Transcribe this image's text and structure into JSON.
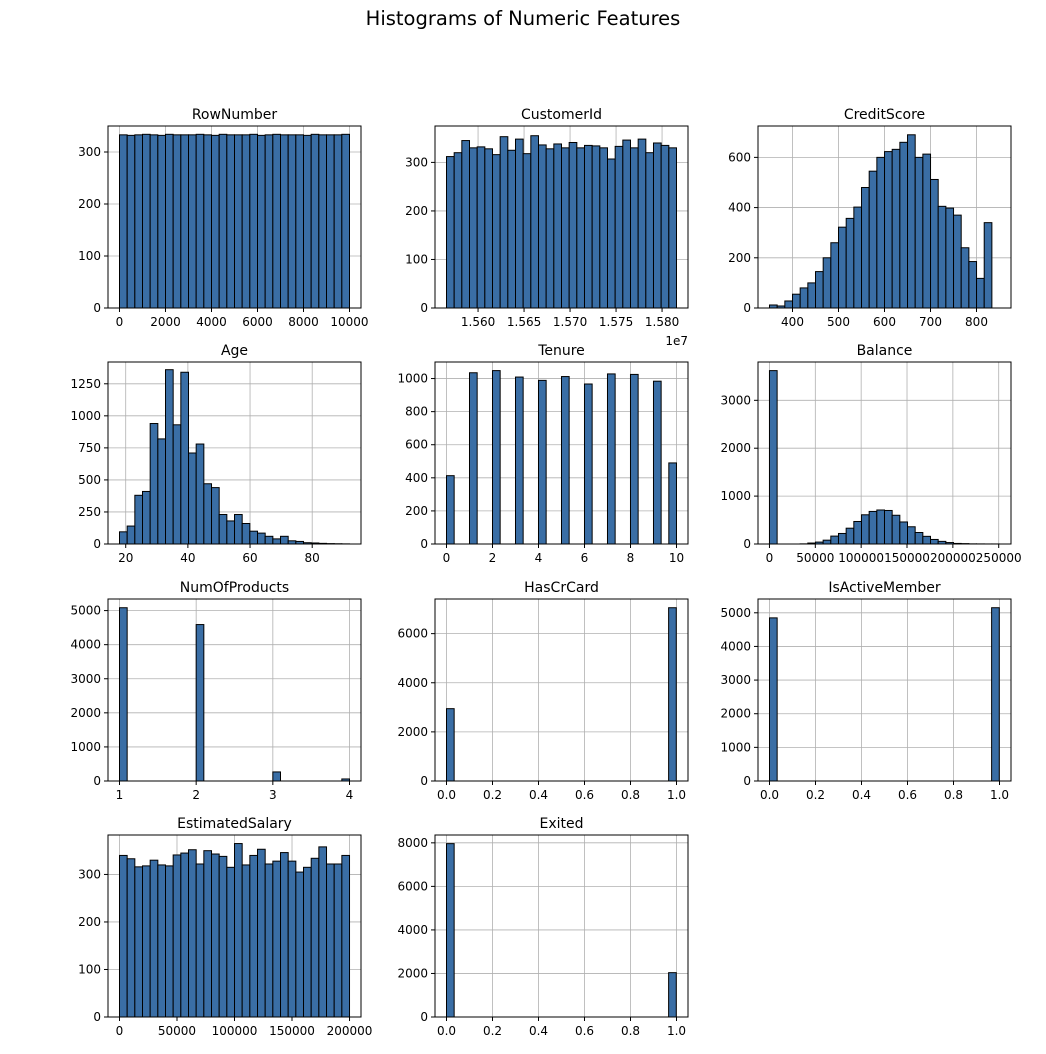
{
  "figure": {
    "title": "Histograms of Numeric Features"
  },
  "style": {
    "bar_fill": "#3a6ea5",
    "bar_edge": "#000000",
    "grid_color": "#b0b0b0"
  },
  "chart_data": [
    {
      "type": "bar",
      "title": "RowNumber",
      "grid": true,
      "bin_start": 1,
      "bin_width": 333.3,
      "values": [
        333,
        332,
        333,
        334,
        333,
        332,
        334,
        333,
        333,
        333,
        334,
        333,
        332,
        334,
        333,
        333,
        333,
        334,
        332,
        333,
        334,
        333,
        333,
        333,
        332,
        334,
        333,
        333,
        333,
        334
      ],
      "xlim": [
        -499,
        10500
      ],
      "ylim": [
        0,
        350
      ],
      "xticks": [
        0,
        2000,
        4000,
        6000,
        8000,
        10000
      ],
      "xticklabels": [
        "0",
        "2000",
        "4000",
        "6000",
        "8000",
        "10000"
      ],
      "yticks": [
        0,
        100,
        200,
        300
      ],
      "yticklabels": [
        "0",
        "100",
        "200",
        "300"
      ],
      "offset_label": ""
    },
    {
      "type": "bar",
      "title": "CustomerId",
      "grid": true,
      "bin_start": 15565701,
      "bin_width": 8333,
      "values": [
        312,
        320,
        345,
        330,
        332,
        328,
        316,
        353,
        325,
        348,
        318,
        355,
        336,
        328,
        338,
        330,
        341,
        330,
        335,
        334,
        330,
        307,
        333,
        346,
        330,
        348,
        320,
        340,
        335,
        330
      ],
      "xlim": [
        15553200,
        15828200
      ],
      "ylim": [
        0,
        375
      ],
      "xticks": [
        15600000,
        15650000,
        15700000,
        15750000,
        15800000
      ],
      "xticklabels": [
        "1.560",
        "1.565",
        "1.570",
        "1.575",
        "1.580"
      ],
      "yticks": [
        0,
        100,
        200,
        300
      ],
      "yticklabels": [
        "0",
        "100",
        "200",
        "300"
      ],
      "offset_label": "1e7"
    },
    {
      "type": "bar",
      "title": "CreditScore",
      "grid": true,
      "bin_start": 350,
      "bin_width": 16.67,
      "values": [
        12,
        8,
        28,
        55,
        80,
        100,
        145,
        200,
        260,
        322,
        357,
        402,
        480,
        545,
        600,
        623,
        632,
        660,
        690,
        600,
        613,
        512,
        405,
        398,
        370,
        240,
        185,
        118,
        340
      ],
      "xlim": [
        325,
        875
      ],
      "ylim": [
        0,
        725
      ],
      "xticks": [
        400,
        500,
        600,
        700,
        800
      ],
      "xticklabels": [
        "400",
        "500",
        "600",
        "700",
        "800"
      ],
      "yticks": [
        0,
        200,
        400,
        600
      ],
      "yticklabels": [
        "0",
        "200",
        "400",
        "600"
      ],
      "offset_label": ""
    },
    {
      "type": "bar",
      "title": "Age",
      "grid": true,
      "bin_start": 18,
      "bin_width": 2.467,
      "values": [
        95,
        140,
        380,
        410,
        940,
        820,
        1360,
        930,
        1340,
        710,
        780,
        470,
        440,
        230,
        180,
        230,
        160,
        100,
        85,
        60,
        40,
        60,
        25,
        20,
        10,
        8,
        5,
        3,
        2,
        1
      ],
      "xlim": [
        14.3,
        95.7
      ],
      "ylim": [
        0,
        1420
      ],
      "xticks": [
        20,
        40,
        60,
        80
      ],
      "xticklabels": [
        "20",
        "40",
        "60",
        "80"
      ],
      "yticks": [
        0,
        250,
        500,
        750,
        1000,
        1250
      ],
      "yticklabels": [
        "0",
        "250",
        "500",
        "750",
        "1000",
        "1250"
      ],
      "offset_label": ""
    },
    {
      "type": "bar",
      "title": "Tenure",
      "grid": true,
      "bin_start": 0,
      "bin_width": 0.3333,
      "values": [
        413,
        0,
        0,
        1035,
        0,
        0,
        1048,
        0,
        0,
        1009,
        0,
        0,
        989,
        0,
        0,
        1012,
        0,
        0,
        967,
        0,
        0,
        1028,
        0,
        0,
        1025,
        0,
        0,
        984,
        0,
        490
      ],
      "xlim": [
        -0.5,
        10.5
      ],
      "ylim": [
        0,
        1100
      ],
      "xticks": [
        0,
        2,
        4,
        6,
        8,
        10
      ],
      "xticklabels": [
        "0",
        "2",
        "4",
        "6",
        "8",
        "10"
      ],
      "yticks": [
        0,
        200,
        400,
        600,
        800,
        1000
      ],
      "yticklabels": [
        "0",
        "200",
        "400",
        "600",
        "800",
        "1000"
      ],
      "offset_label": ""
    },
    {
      "type": "bar",
      "title": "Balance",
      "grid": true,
      "bin_start": 0,
      "bin_width": 8363,
      "values": [
        3620,
        0,
        0,
        0,
        3,
        20,
        40,
        80,
        165,
        220,
        330,
        470,
        610,
        680,
        710,
        700,
        600,
        460,
        360,
        240,
        160,
        95,
        55,
        30,
        12,
        8,
        3,
        2,
        1,
        1
      ],
      "xlim": [
        -12500,
        263400
      ],
      "ylim": [
        0,
        3800
      ],
      "xticks": [
        0,
        50000,
        100000,
        150000,
        200000,
        250000
      ],
      "xticklabels": [
        "0",
        "50000",
        "100000",
        "150000",
        "200000",
        "250000"
      ],
      "yticks": [
        0,
        1000,
        2000,
        3000
      ],
      "yticklabels": [
        "0",
        "1000",
        "2000",
        "3000"
      ],
      "offset_label": ""
    },
    {
      "type": "bar",
      "title": "NumOfProducts",
      "grid": true,
      "bin_start": 1,
      "bin_width": 0.1,
      "values": [
        5084,
        0,
        0,
        0,
        0,
        0,
        0,
        0,
        0,
        0,
        4590,
        0,
        0,
        0,
        0,
        0,
        0,
        0,
        0,
        0,
        266,
        0,
        0,
        0,
        0,
        0,
        0,
        0,
        0,
        60
      ],
      "xlim": [
        0.85,
        4.15
      ],
      "ylim": [
        0,
        5340
      ],
      "xticks": [
        1,
        2,
        3,
        4
      ],
      "xticklabels": [
        "1",
        "2",
        "3",
        "4"
      ],
      "yticks": [
        0,
        1000,
        2000,
        3000,
        4000,
        5000
      ],
      "yticklabels": [
        "0",
        "1000",
        "2000",
        "3000",
        "4000",
        "5000"
      ],
      "offset_label": ""
    },
    {
      "type": "bar",
      "title": "HasCrCard",
      "grid": true,
      "bin_start": 0,
      "bin_width": 0.0333,
      "values": [
        2945,
        0,
        0,
        0,
        0,
        0,
        0,
        0,
        0,
        0,
        0,
        0,
        0,
        0,
        0,
        0,
        0,
        0,
        0,
        0,
        0,
        0,
        0,
        0,
        0,
        0,
        0,
        0,
        0,
        7055
      ],
      "xlim": [
        -0.05,
        1.05
      ],
      "ylim": [
        0,
        7410
      ],
      "xticks": [
        0,
        0.2,
        0.4,
        0.6,
        0.8,
        1.0
      ],
      "xticklabels": [
        "0.0",
        "0.2",
        "0.4",
        "0.6",
        "0.8",
        "1.0"
      ],
      "yticks": [
        0,
        2000,
        4000,
        6000
      ],
      "yticklabels": [
        "0",
        "2000",
        "4000",
        "6000"
      ],
      "offset_label": ""
    },
    {
      "type": "bar",
      "title": "IsActiveMember",
      "grid": true,
      "bin_start": 0,
      "bin_width": 0.0333,
      "values": [
        4849,
        0,
        0,
        0,
        0,
        0,
        0,
        0,
        0,
        0,
        0,
        0,
        0,
        0,
        0,
        0,
        0,
        0,
        0,
        0,
        0,
        0,
        0,
        0,
        0,
        0,
        0,
        0,
        0,
        5151
      ],
      "xlim": [
        -0.05,
        1.05
      ],
      "ylim": [
        0,
        5410
      ],
      "xticks": [
        0,
        0.2,
        0.4,
        0.6,
        0.8,
        1.0
      ],
      "xticklabels": [
        "0.0",
        "0.2",
        "0.4",
        "0.6",
        "0.8",
        "1.0"
      ],
      "yticks": [
        0,
        1000,
        2000,
        3000,
        4000,
        5000
      ],
      "yticklabels": [
        "0",
        "1000",
        "2000",
        "3000",
        "4000",
        "5000"
      ],
      "offset_label": ""
    },
    {
      "type": "bar",
      "title": "EstimatedSalary",
      "grid": true,
      "bin_start": 11.58,
      "bin_width": 6666.3,
      "values": [
        340,
        333,
        316,
        318,
        330,
        320,
        318,
        341,
        345,
        352,
        322,
        350,
        343,
        338,
        315,
        365,
        320,
        340,
        353,
        322,
        328,
        346,
        328,
        305,
        315,
        334,
        358,
        322,
        322,
        340
      ],
      "xlim": [
        -9985,
        209980
      ],
      "ylim": [
        0,
        383
      ],
      "xticks": [
        0,
        50000,
        100000,
        150000,
        200000
      ],
      "xticklabels": [
        "0",
        "50000",
        "100000",
        "150000",
        "200000"
      ],
      "yticks": [
        0,
        100,
        200,
        300
      ],
      "yticklabels": [
        "0",
        "100",
        "200",
        "300"
      ],
      "offset_label": ""
    },
    {
      "type": "bar",
      "title": "Exited",
      "grid": true,
      "bin_start": 0,
      "bin_width": 0.0333,
      "values": [
        7963,
        0,
        0,
        0,
        0,
        0,
        0,
        0,
        0,
        0,
        0,
        0,
        0,
        0,
        0,
        0,
        0,
        0,
        0,
        0,
        0,
        0,
        0,
        0,
        0,
        0,
        0,
        0,
        0,
        2037
      ],
      "xlim": [
        -0.05,
        1.05
      ],
      "ylim": [
        0,
        8360
      ],
      "xticks": [
        0,
        0.2,
        0.4,
        0.6,
        0.8,
        1.0
      ],
      "xticklabels": [
        "0.0",
        "0.2",
        "0.4",
        "0.6",
        "0.8",
        "1.0"
      ],
      "yticks": [
        0,
        2000,
        4000,
        6000,
        8000
      ],
      "yticklabels": [
        "0",
        "2000",
        "4000",
        "6000",
        "8000"
      ],
      "offset_label": ""
    }
  ]
}
